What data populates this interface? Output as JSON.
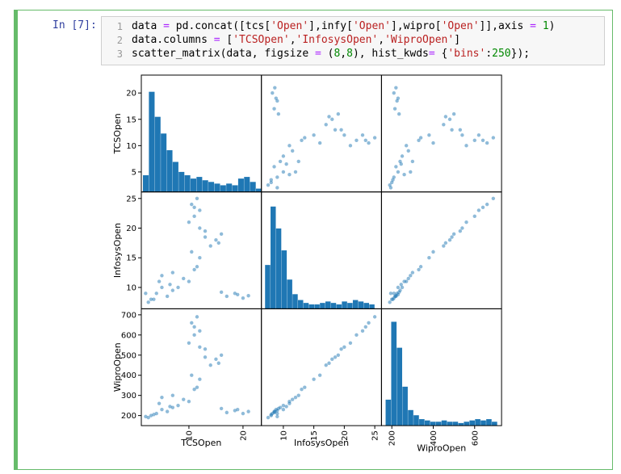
{
  "notebook": {
    "prompt": "In [7]:",
    "code": [
      [
        {
          "text": "data ",
          "kind": "n"
        },
        {
          "text": "=",
          "kind": "o"
        },
        {
          "text": " pd.concat([tcs[",
          "kind": "n"
        },
        {
          "text": "'Open'",
          "kind": "s"
        },
        {
          "text": "],infy[",
          "kind": "n"
        },
        {
          "text": "'Open'",
          "kind": "s"
        },
        {
          "text": "],wipro[",
          "kind": "n"
        },
        {
          "text": "'Open'",
          "kind": "s"
        },
        {
          "text": "]],axis ",
          "kind": "n"
        },
        {
          "text": "=",
          "kind": "o"
        },
        {
          "text": " ",
          "kind": "n"
        },
        {
          "text": "1",
          "kind": "m"
        },
        {
          "text": ")",
          "kind": "n"
        }
      ],
      [
        {
          "text": "data.columns ",
          "kind": "n"
        },
        {
          "text": "=",
          "kind": "o"
        },
        {
          "text": " [",
          "kind": "n"
        },
        {
          "text": "'TCSOpen'",
          "kind": "s"
        },
        {
          "text": ",",
          "kind": "n"
        },
        {
          "text": "'InfosysOpen'",
          "kind": "s"
        },
        {
          "text": ",",
          "kind": "n"
        },
        {
          "text": "'WiproOpen'",
          "kind": "s"
        },
        {
          "text": "]",
          "kind": "n"
        }
      ],
      [
        {
          "text": "scatter_matrix(data, figsize ",
          "kind": "n"
        },
        {
          "text": "=",
          "kind": "o"
        },
        {
          "text": " (",
          "kind": "n"
        },
        {
          "text": "8",
          "kind": "m"
        },
        {
          "text": ",",
          "kind": "n"
        },
        {
          "text": "8",
          "kind": "m"
        },
        {
          "text": "), hist_kwds",
          "kind": "n"
        },
        {
          "text": "=",
          "kind": "o"
        },
        {
          "text": " {",
          "kind": "n"
        },
        {
          "text": "'bins'",
          "kind": "s"
        },
        {
          "text": ":",
          "kind": "n"
        },
        {
          "text": "250",
          "kind": "m"
        },
        {
          "text": "});",
          "kind": "n"
        }
      ]
    ],
    "line_numbers": [
      1,
      2,
      3
    ]
  },
  "chart_data": {
    "type": "scatter_matrix",
    "color": "#1f77b4",
    "variables": [
      {
        "name": "TCSOpen",
        "lim": [
          1.2,
          23.4
        ],
        "xticks": [
          10,
          20
        ],
        "yticks": [
          5,
          10,
          15,
          20
        ],
        "hist": {
          "bins": [
            1.5,
            2.6,
            3.7,
            4.8,
            5.9,
            7,
            8.1,
            9.2,
            10.3,
            11.4,
            12.5,
            13.6,
            14.7,
            15.8,
            16.9,
            18,
            19.1,
            20.2,
            21.3,
            22.4,
            23.5
          ],
          "counts": [
            10,
            60,
            45,
            35,
            25,
            18,
            12,
            10,
            8,
            9,
            7,
            6,
            5,
            4,
            5,
            4,
            8,
            9,
            6,
            2
          ],
          "ylim": [
            0,
            70
          ]
        }
      },
      {
        "name": "InfosysOpen",
        "lim": [
          6.4,
          26.1
        ],
        "xticks": [
          10,
          15,
          20,
          25
        ],
        "yticks": [
          10,
          15,
          20,
          25
        ],
        "hist": {
          "bins": [
            7,
            7.9,
            8.8,
            9.7,
            10.6,
            11.5,
            12.4,
            13.3,
            14.2,
            15.1,
            16,
            16.9,
            17.8,
            18.7,
            19.6,
            20.5,
            21.4,
            22.3,
            23.2,
            24.1,
            25
          ],
          "counts": [
            30,
            70,
            55,
            40,
            20,
            10,
            6,
            4,
            3,
            3,
            4,
            5,
            4,
            3,
            5,
            4,
            6,
            5,
            4,
            3
          ],
          "ylim": [
            0,
            80
          ]
        }
      },
      {
        "name": "WiproOpen",
        "lim": [
          150,
          730
        ],
        "xticks": [
          200,
          400,
          600
        ],
        "yticks": [
          200,
          300,
          400,
          500,
          600,
          700
        ],
        "hist": {
          "bins": [
            170,
            197,
            224,
            251,
            278,
            305,
            332,
            359,
            386,
            413,
            440,
            467,
            494,
            521,
            548,
            575,
            602,
            629,
            656,
            683,
            710
          ],
          "counts": [
            20,
            80,
            60,
            30,
            12,
            8,
            5,
            4,
            3,
            3,
            4,
            3,
            3,
            2,
            3,
            4,
            5,
            4,
            5,
            3
          ],
          "ylim": [
            0,
            90
          ]
        }
      }
    ],
    "rows": [
      [
        3,
        8,
        200
      ],
      [
        4,
        9,
        210
      ],
      [
        5,
        10,
        230
      ],
      [
        6,
        8.5,
        220
      ],
      [
        7,
        9.5,
        240
      ],
      [
        2.5,
        7.5,
        190
      ],
      [
        4.5,
        11,
        260
      ],
      [
        8,
        10,
        250
      ],
      [
        3.5,
        8,
        205
      ],
      [
        6.5,
        10.5,
        245
      ],
      [
        17,
        8.5,
        215
      ],
      [
        18.5,
        9,
        225
      ],
      [
        20,
        8.2,
        210
      ],
      [
        19,
        8.8,
        230
      ],
      [
        16,
        9.2,
        235
      ],
      [
        21,
        8.6,
        220
      ],
      [
        10,
        11,
        270
      ],
      [
        11,
        13,
        330
      ],
      [
        12,
        15,
        380
      ],
      [
        10.5,
        16,
        400
      ],
      [
        11.5,
        13.5,
        340
      ],
      [
        14,
        17,
        450
      ],
      [
        15,
        18,
        480
      ],
      [
        16,
        19,
        500
      ],
      [
        13,
        18.5,
        490
      ],
      [
        15.5,
        17.5,
        460
      ],
      [
        10,
        21,
        560
      ],
      [
        11,
        22,
        600
      ],
      [
        12,
        23,
        620
      ],
      [
        10.5,
        24,
        660
      ],
      [
        11.5,
        25,
        690
      ],
      [
        12,
        20,
        540
      ],
      [
        13,
        19.5,
        530
      ],
      [
        11,
        23.5,
        640
      ],
      [
        5,
        12,
        290
      ],
      [
        9,
        11.5,
        280
      ],
      [
        2,
        9,
        195
      ],
      [
        7,
        12.5,
        300
      ]
    ]
  }
}
